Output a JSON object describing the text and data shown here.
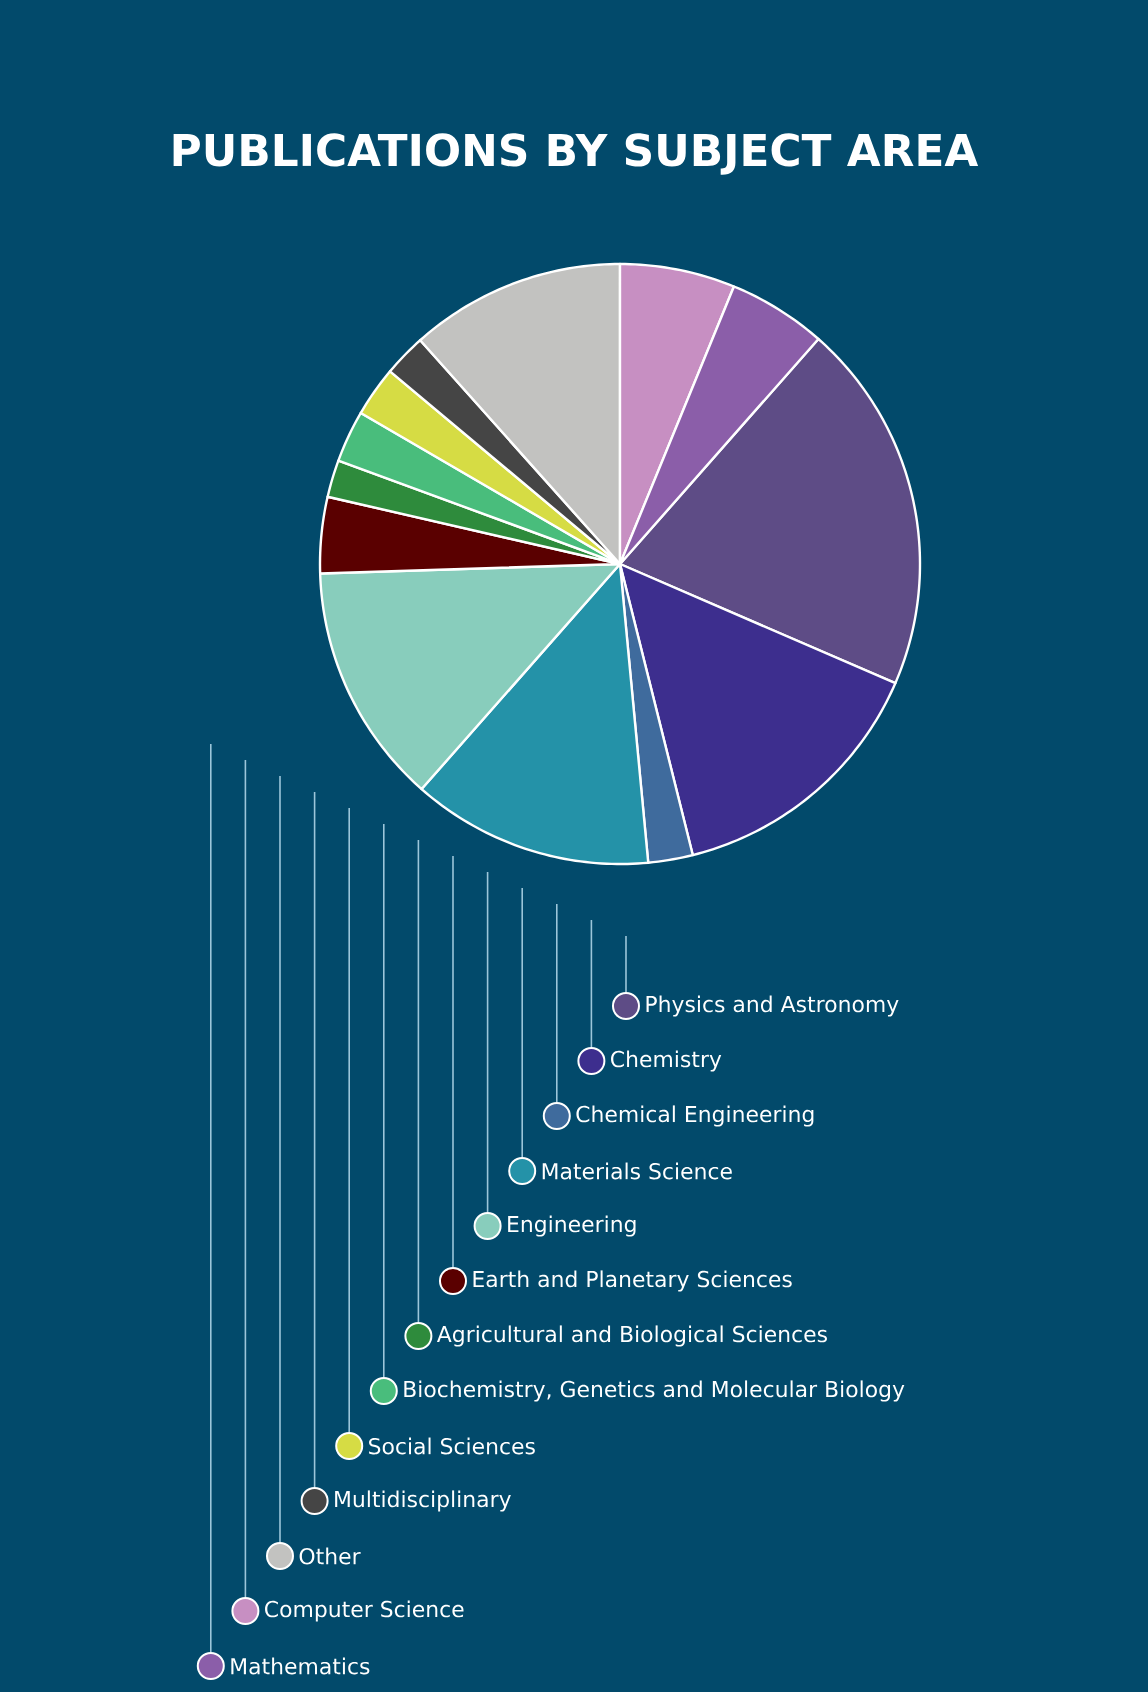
{
  "chart_data": {
    "type": "pie",
    "title": "PUBLICATIONS BY SUBJECT AREA",
    "categories": [
      "Physics and Astronomy",
      "Chemistry",
      "Chemical Engineering",
      "Materials Science",
      "Engineering",
      "Earth and Planetary Sciences",
      "Agricultural and Biological Sciences",
      "Biochemistry, Genetics and Molecular Biology",
      "Social Sciences",
      "Multidisciplinary",
      "Other",
      "Computer Science",
      "Mathematics"
    ],
    "values": [
      20.0,
      14.6,
      2.4,
      13.0,
      13.0,
      4.1,
      2.0,
      2.8,
      2.7,
      2.3,
      11.6,
      6.2,
      5.3
    ],
    "colors": [
      "#5e4c86",
      "#3d2e8e",
      "#3f6b9d",
      "#2492a8",
      "#88cdbc",
      "#5a0000",
      "#2e8b3c",
      "#49bd7c",
      "#d6dc44",
      "#454545",
      "#c2c2c0",
      "#c78fc2",
      "#8b5ea9"
    ],
    "legend": "bottom"
  }
}
